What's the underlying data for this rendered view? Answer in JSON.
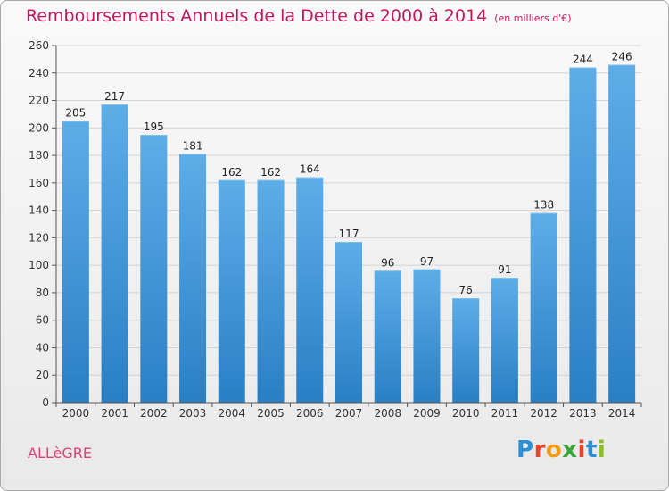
{
  "header": {
    "title": "Remboursements Annuels de la Dette de 2000 à 2014",
    "unit": "(en milliers d'€)"
  },
  "footer": {
    "commune": "ALLèGRE",
    "brand": "Proxiti"
  },
  "chart_data": {
    "type": "bar",
    "title": "Remboursements Annuels de la Dette de 2000 à 2014",
    "subtitle": "(en milliers d'€)",
    "xlabel": "",
    "ylabel": "",
    "categories": [
      "2000",
      "2001",
      "2002",
      "2003",
      "2004",
      "2005",
      "2006",
      "2007",
      "2008",
      "2009",
      "2010",
      "2011",
      "2012",
      "2013",
      "2014"
    ],
    "values": [
      205,
      217,
      195,
      181,
      162,
      162,
      164,
      117,
      96,
      97,
      76,
      91,
      138,
      244,
      246
    ],
    "ylim": [
      0,
      260
    ],
    "yticks": [
      0,
      20,
      40,
      60,
      80,
      100,
      120,
      140,
      160,
      180,
      200,
      220,
      240,
      260
    ],
    "grid": true,
    "legend": "none",
    "colors": {
      "bar_light": "#5dade8",
      "bar_dark": "#2a7fc4",
      "grid": "#d4d4d4",
      "axis": "#555555"
    }
  }
}
